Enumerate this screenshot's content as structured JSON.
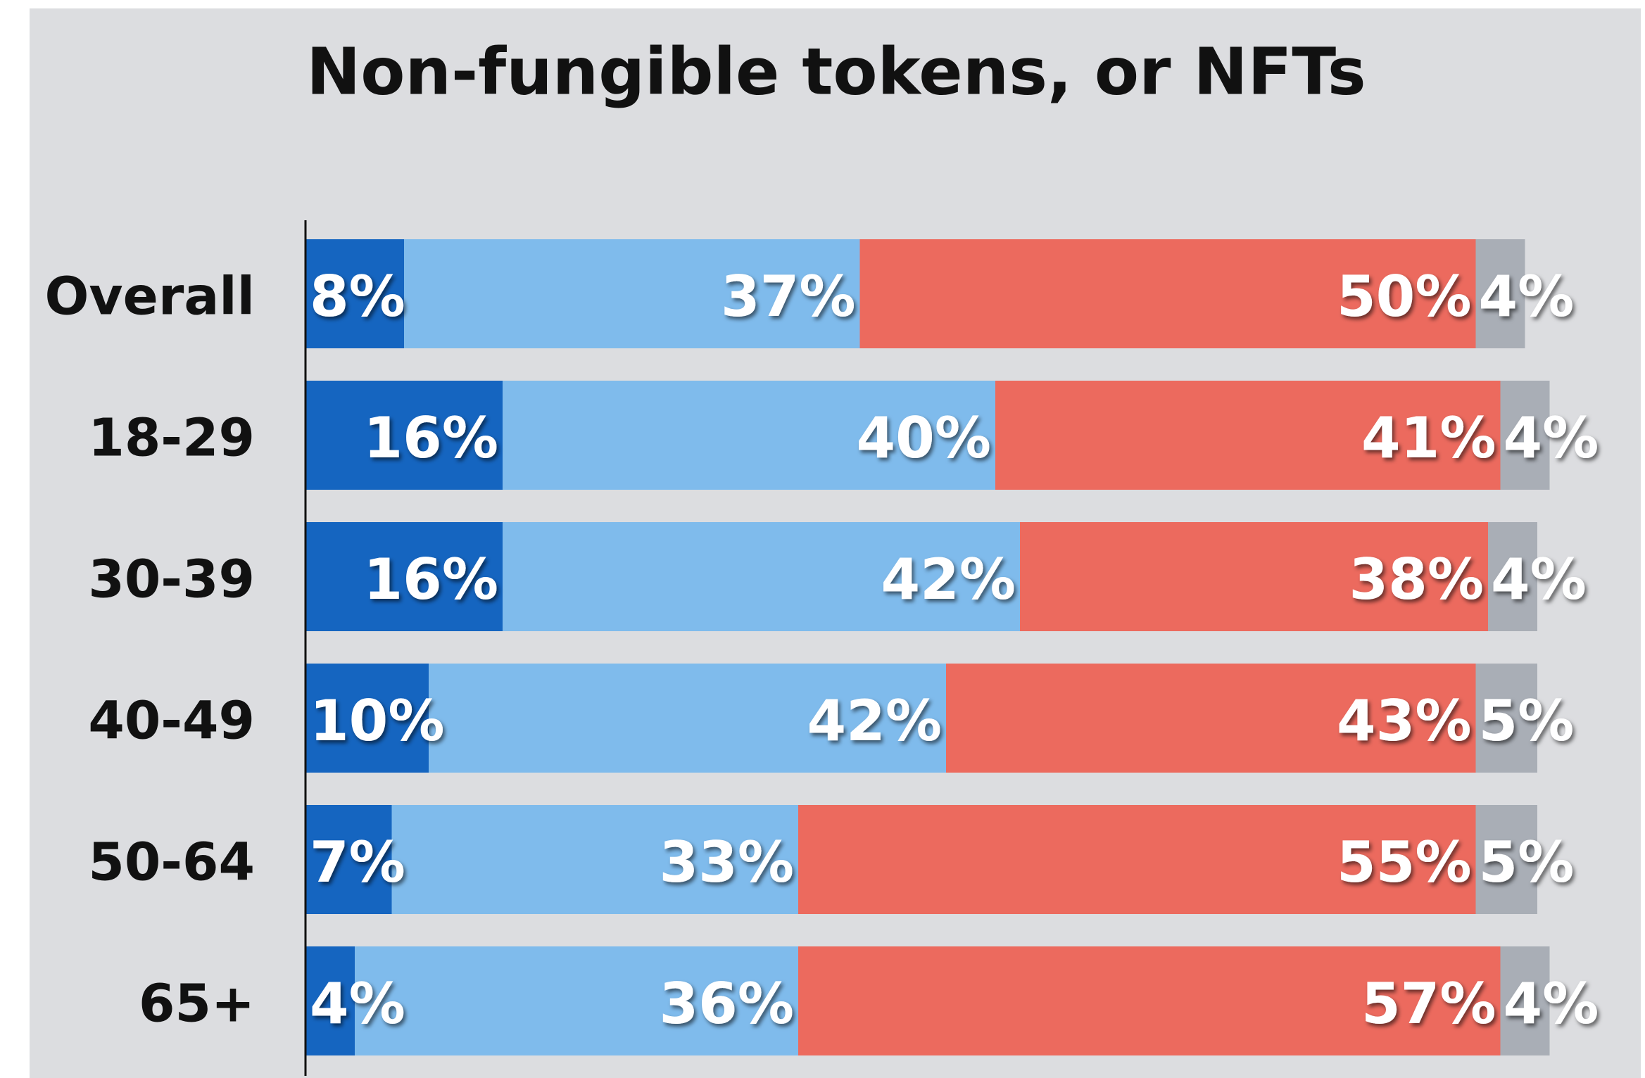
{
  "chart_data": {
    "type": "stacked-bar-horizontal",
    "title": "Non-fungible tokens, or NFTs",
    "categories": [
      "Overall",
      "18-29",
      "30-39",
      "40-49",
      "50-64",
      "65+"
    ],
    "xlim": [
      0,
      100
    ],
    "series": [
      {
        "color": "#1565c0",
        "values": [
          8,
          16,
          16,
          10,
          7,
          4
        ],
        "value_labels": [
          "8%",
          "16%",
          "16%",
          "10%",
          "7%",
          "4%"
        ]
      },
      {
        "color": "#7fbbec",
        "values": [
          37,
          40,
          42,
          42,
          33,
          36
        ],
        "value_labels": [
          "37%",
          "40%",
          "42%",
          "42%",
          "33%",
          "36%"
        ]
      },
      {
        "color": "#ec6a5e",
        "values": [
          50,
          41,
          38,
          43,
          55,
          57
        ],
        "value_labels": [
          "50%",
          "41%",
          "38%",
          "43%",
          "55%",
          "57%"
        ]
      },
      {
        "color": "#a9aeb6",
        "values": [
          4,
          4,
          4,
          5,
          5,
          4
        ],
        "value_labels": [
          "4%",
          "4%",
          "4%",
          "5%",
          "5%",
          "4%"
        ]
      }
    ]
  }
}
